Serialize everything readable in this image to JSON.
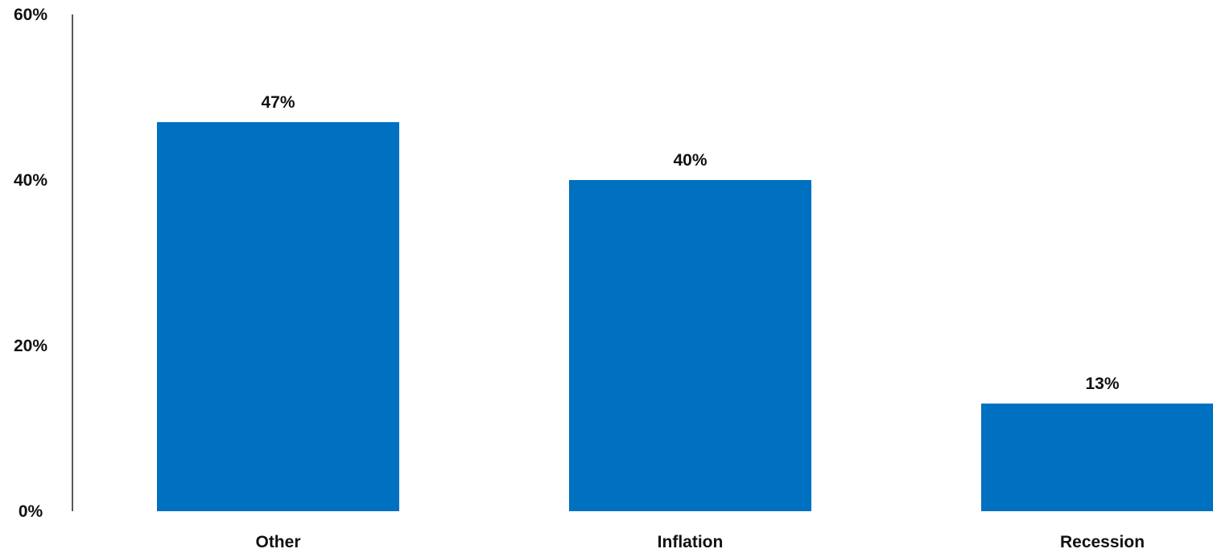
{
  "chart_data": {
    "type": "bar",
    "categories": [
      "Other",
      "Inflation",
      "Recession"
    ],
    "values": [
      47,
      40,
      13
    ],
    "data_labels": [
      "47%",
      "40%",
      "13%"
    ],
    "yticks": [
      0,
      20,
      40,
      60
    ],
    "ytick_labels": [
      "0%",
      "20%",
      "40%",
      "60%"
    ],
    "ylim": [
      0,
      60
    ],
    "bar_color": "#0070C0",
    "grid": false,
    "legend": "none"
  }
}
